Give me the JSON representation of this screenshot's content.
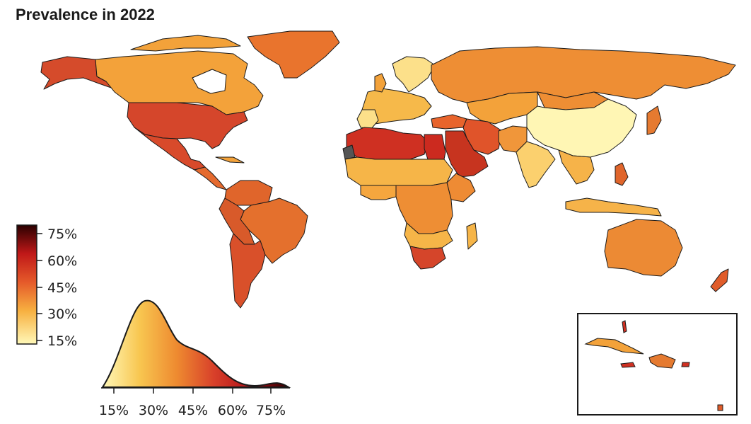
{
  "title": "Prevalence in 2022",
  "legend": {
    "labels": [
      "75%",
      "60%",
      "45%",
      "30%",
      "15%"
    ],
    "colors": [
      "#330000",
      "#c0101a",
      "#e04a2a",
      "#f5a030",
      "#fff8b8"
    ]
  },
  "density": {
    "x_tick_labels": [
      "15%",
      "30%",
      "45%",
      "60%",
      "75%"
    ]
  },
  "map": {
    "country_colors": {
      "north_america_canada": "#f3a23a",
      "usa": "#d5462b",
      "alaska": "#d54b2b",
      "greenland": "#e9742d",
      "mexico": "#d84a2b",
      "south_america": "#e0652b",
      "brazil": "#e4702d",
      "russia": "#ee8e34",
      "china": "#fff6b4",
      "europe": "#f6b94a",
      "scandinavia": "#fce08a",
      "north_africa": "#cf3022",
      "egypt": "#cc2a1f",
      "saudi": "#c7341f",
      "africa_mid": "#f6b548",
      "southern_africa": "#d5452a",
      "india": "#fbd06e",
      "southeast_asia": "#f6b349",
      "australia": "#ec8a34",
      "new_zealand": "#e05c2a",
      "middle_east": "#e0542a",
      "caribbean": "#e57a30"
    }
  }
}
